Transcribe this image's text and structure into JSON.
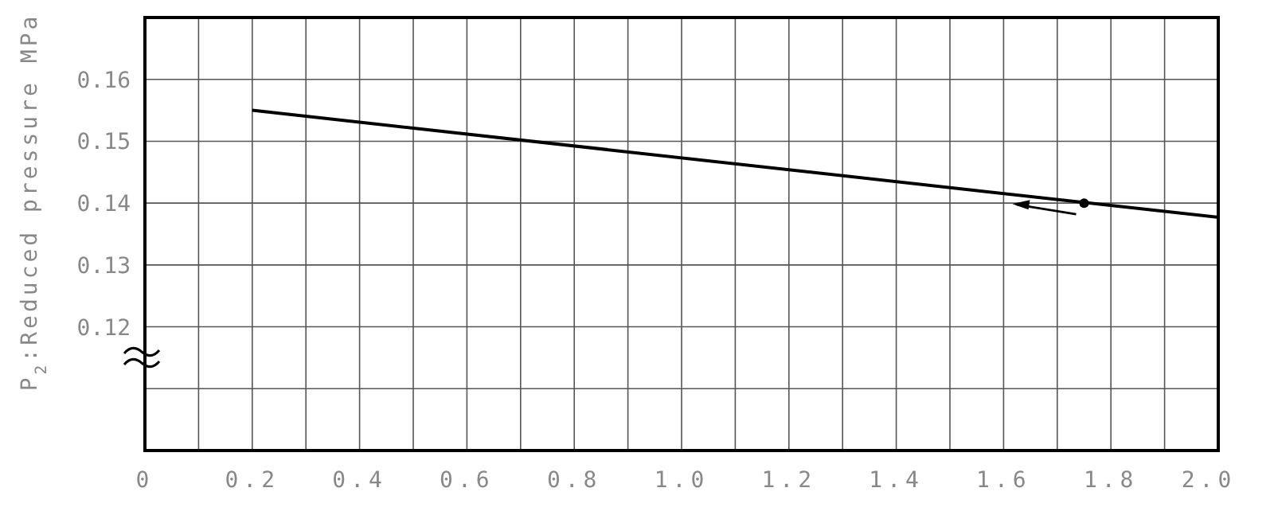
{
  "chart_data": {
    "type": "line",
    "ylabel": "P$_{2}$:Reduced pressure MPa",
    "xlim": [
      0,
      2.0
    ],
    "xticks": [
      0,
      {
        "value": 0.1,
        "label": null
      },
      {
        "value": 0.2,
        "label": "0.2"
      },
      {
        "value": 0.3,
        "label": null
      },
      {
        "value": 0.4,
        "label": "0.4"
      },
      {
        "value": 0.5,
        "label": null
      },
      {
        "value": 0.6,
        "label": "0.6"
      },
      {
        "value": 0.7,
        "label": null
      },
      {
        "value": 0.8,
        "label": "0.8"
      },
      {
        "value": 0.9,
        "label": null
      },
      {
        "value": 1.0,
        "label": "1.0"
      },
      {
        "value": 1.1,
        "label": null
      },
      {
        "value": 1.2,
        "label": "1.2"
      },
      {
        "value": 1.3,
        "label": null
      },
      {
        "value": 1.4,
        "label": "1.4"
      },
      {
        "value": 1.5,
        "label": null
      },
      {
        "value": 1.6,
        "label": "1.6"
      },
      {
        "value": 1.7,
        "label": null
      },
      {
        "value": 1.8,
        "label": "1.8"
      },
      {
        "value": 1.9,
        "label": null
      },
      {
        "value": 2.0,
        "label": "2.0"
      }
    ],
    "ylim": [
      0.1,
      0.17
    ],
    "yticks": [
      {
        "value": 0.11,
        "label": null
      },
      0.12,
      0.13,
      0.14,
      0.15,
      0.16
    ],
    "grid": true,
    "series": [
      {
        "color": "#000000",
        "x": [
          0.2,
          2.0
        ],
        "values": [
          0.155,
          0.1377
        ],
        "marker": "none",
        "line_style": "solid"
      },
      {
        "type": "scatter",
        "color": "#000000",
        "x": [
          1.75
        ],
        "values": [
          0.14
        ],
        "marker": "circle"
      }
    ]
  }
}
